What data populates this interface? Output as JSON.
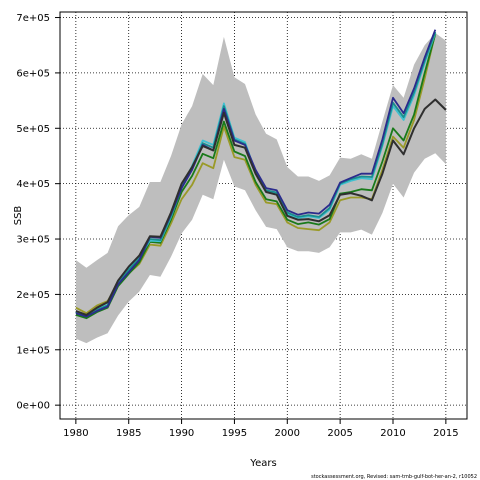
{
  "chart_data": {
    "type": "line",
    "title": "",
    "xlabel": "Years",
    "ylabel": "SSB",
    "xlim": [
      1978.5,
      1980,
      2017
    ],
    "ylim": [
      -25000,
      710000
    ],
    "x_ticks": [
      1980,
      1985,
      1990,
      1995,
      2000,
      2005,
      2010,
      2015
    ],
    "x_tick_labels": [
      "1980",
      "1985",
      "1990",
      "1995",
      "2000",
      "2005",
      "2010",
      "2015"
    ],
    "y_ticks": [
      0,
      100000,
      200000,
      300000,
      400000,
      500000,
      600000,
      700000
    ],
    "y_tick_labels": [
      "0e+00",
      "1e+05",
      "2e+05",
      "3e+05",
      "4e+05",
      "5e+05",
      "6e+05",
      "7e+05"
    ],
    "grid": true,
    "credit": "stockassessment.org, Revised: sam-tmb-gulf-bot-her-an-2, r10052",
    "colors": {
      "band": "#bebebe",
      "series": [
        "#2f2f2f",
        "#1a7a1a",
        "#9a9a28",
        "#2b2b8c",
        "#1a8e8e",
        "#40c0d0"
      ]
    },
    "band": {
      "x": [
        1980,
        1981,
        1982,
        1983,
        1984,
        1985,
        1986,
        1987,
        1988,
        1989,
        1990,
        1991,
        1992,
        1993,
        1994,
        1995,
        1996,
        1997,
        1998,
        1999,
        2000,
        2001,
        2002,
        2003,
        2004,
        2005,
        2006,
        2007,
        2008,
        2009,
        2010,
        2011,
        2012,
        2013,
        2014,
        2015
      ],
      "upper": [
        262000,
        248000,
        262000,
        275000,
        323000,
        343000,
        358000,
        403000,
        403000,
        450000,
        507000,
        540000,
        598000,
        578000,
        665000,
        592000,
        580000,
        525000,
        490000,
        480000,
        430000,
        413000,
        413000,
        405000,
        415000,
        447000,
        445000,
        453000,
        445000,
        512000,
        578000,
        555000,
        615000,
        650000,
        672000,
        658000
      ],
      "lower": [
        120000,
        112000,
        122000,
        130000,
        162000,
        187000,
        205000,
        235000,
        232000,
        268000,
        310000,
        335000,
        380000,
        372000,
        443000,
        395000,
        388000,
        352000,
        322000,
        318000,
        285000,
        278000,
        278000,
        275000,
        285000,
        312000,
        312000,
        317000,
        308000,
        347000,
        400000,
        375000,
        420000,
        445000,
        455000,
        435000
      ]
    },
    "series": [
      {
        "x": [
          1980,
          1981,
          1982,
          1983,
          1984,
          1985,
          1986,
          1987,
          1988,
          1989,
          1990,
          1991,
          1992,
          1993,
          1994,
          1995,
          1996,
          1997,
          1998,
          1999,
          2000,
          2001,
          2002,
          2003,
          2004,
          2005,
          2006,
          2007,
          2008,
          2009,
          2010,
          2011,
          2012,
          2013,
          2014,
          2015
        ],
        "values": [
          170000,
          163000,
          176000,
          186000,
          225000,
          250000,
          270000,
          305000,
          304000,
          348000,
          400000,
          430000,
          468000,
          460000,
          528000,
          470000,
          465000,
          418000,
          385000,
          380000,
          342000,
          335000,
          336000,
          332000,
          343000,
          380000,
          383000,
          378000,
          370000,
          418000,
          478000,
          453000,
          500000,
          535000,
          552000,
          533000
        ]
      },
      {
        "x": [
          1980,
          1981,
          1982,
          1983,
          1984,
          1985,
          1986,
          1987,
          1988,
          1989,
          1990,
          1991,
          1992,
          1993,
          1994,
          1995,
          1996,
          1997,
          1998,
          1999,
          2000,
          2001,
          2002,
          2003,
          2004,
          2005,
          2006,
          2007,
          2008,
          2009,
          2010,
          2011,
          2012,
          2013,
          2014
        ],
        "values": [
          163000,
          157000,
          168000,
          176000,
          215000,
          237000,
          258000,
          295000,
          293000,
          335000,
          385000,
          414000,
          454000,
          446000,
          512000,
          458000,
          450000,
          403000,
          372000,
          368000,
          335000,
          327000,
          330000,
          326000,
          336000,
          382000,
          385000,
          390000,
          388000,
          440000,
          500000,
          478000,
          525000,
          600000,
          670000
        ]
      },
      {
        "x": [
          1980,
          1981,
          1982,
          1983,
          1984,
          1985,
          1986,
          1987,
          1988,
          1989,
          1990,
          1991,
          1992,
          1993,
          1994,
          1995,
          1996,
          1997,
          1998,
          1999,
          2000,
          2001,
          2002,
          2003,
          2004,
          2005,
          2006,
          2007,
          2008,
          2009,
          2010,
          2011,
          2012,
          2013,
          2014
        ],
        "values": [
          176000,
          166000,
          180000,
          188000,
          220000,
          238000,
          255000,
          290000,
          288000,
          328000,
          372000,
          398000,
          437000,
          428000,
          503000,
          448000,
          443000,
          398000,
          366000,
          363000,
          330000,
          320000,
          318000,
          316000,
          330000,
          370000,
          375000,
          375000,
          372000,
          425000,
          485000,
          465000,
          515000,
          590000,
          672000
        ]
      },
      {
        "x": [
          1980,
          1981,
          1982,
          1983,
          1984,
          1985,
          1986,
          1987,
          1988,
          1989,
          1990,
          1991,
          1992,
          1993,
          1994,
          1995,
          1996,
          1997,
          1998,
          1999,
          2000,
          2001,
          2002,
          2003,
          2004,
          2005,
          2006,
          2007,
          2008,
          2009,
          2010,
          2011,
          2012,
          2013,
          2014
        ],
        "values": [
          166000,
          160000,
          170000,
          178000,
          218000,
          240000,
          262000,
          304000,
          302000,
          345000,
          392000,
          425000,
          470000,
          460000,
          535000,
          478000,
          470000,
          425000,
          392000,
          388000,
          352000,
          344000,
          348000,
          346000,
          362000,
          402000,
          410000,
          418000,
          418000,
          480000,
          555000,
          527000,
          572000,
          628000,
          678000
        ]
      },
      {
        "x": [
          1980,
          1981,
          1982,
          1983,
          1984,
          1985,
          1986,
          1987,
          1988,
          1989,
          1990,
          1991,
          1992,
          1993,
          1994,
          1995,
          1996,
          1997,
          1998,
          1999,
          2000,
          2001,
          2002,
          2003,
          2004,
          2005,
          2006,
          2007,
          2008,
          2009,
          2010,
          2011,
          2012,
          2013,
          2014
        ],
        "values": [
          168000,
          161000,
          172000,
          180000,
          221000,
          244000,
          265000,
          300000,
          298000,
          342000,
          392000,
          428000,
          473000,
          465000,
          540000,
          480000,
          472000,
          422000,
          388000,
          384000,
          348000,
          340000,
          343000,
          340000,
          356000,
          400000,
          408000,
          413000,
          412000,
          472000,
          546000,
          520000,
          565000,
          622000,
          674000
        ]
      },
      {
        "x": [
          1980,
          1981,
          1982,
          1983,
          1984,
          1985,
          1986,
          1987,
          1988,
          1989,
          1990,
          1991,
          1992,
          1993,
          1994,
          1995,
          1996,
          1997,
          1998,
          1999,
          2000,
          2001,
          2002,
          2003,
          2004,
          2005,
          2006,
          2007,
          2008,
          2009,
          2010,
          2011,
          2012,
          2013,
          2014
        ],
        "values": [
          169000,
          162000,
          174000,
          181000,
          223000,
          247000,
          268000,
          297000,
          296000,
          340000,
          393000,
          432000,
          478000,
          470000,
          545000,
          483000,
          475000,
          420000,
          385000,
          382000,
          345000,
          338000,
          341000,
          338000,
          353000,
          398000,
          405000,
          410000,
          408000,
          468000,
          540000,
          515000,
          560000,
          618000,
          672000
        ]
      }
    ]
  }
}
